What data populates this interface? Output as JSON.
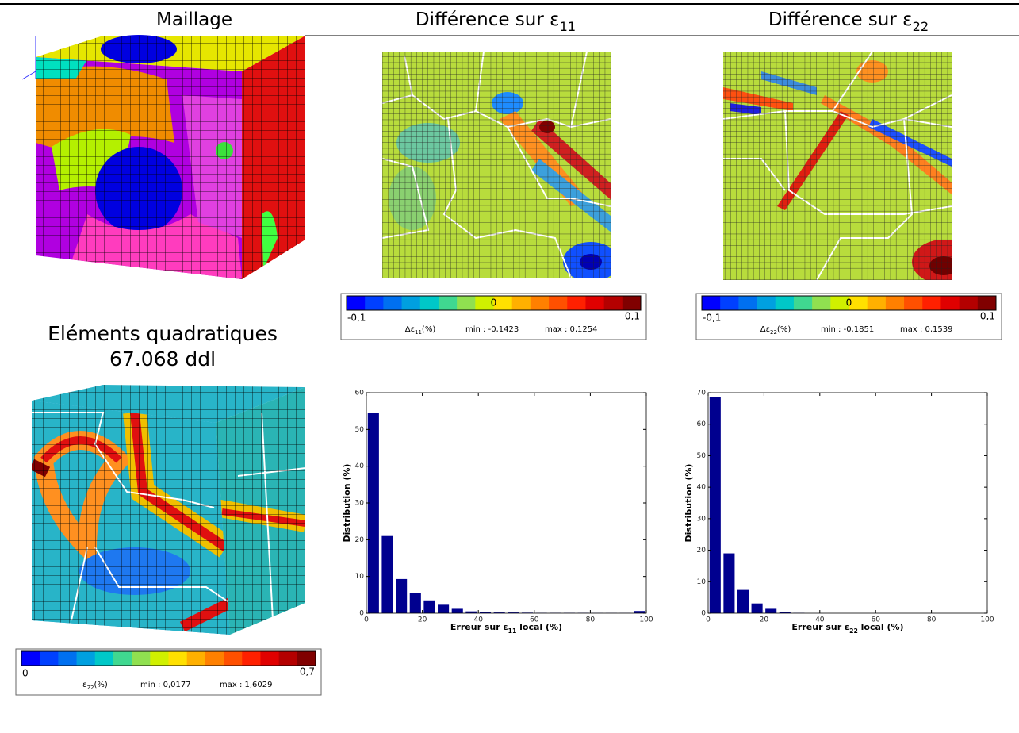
{
  "headers": [
    [
      "Maillage"
    ],
    [
      "Différence sur ε",
      "11"
    ],
    [
      "Différence sur ε",
      "22"
    ]
  ],
  "mesh_caption": [
    "Eléments quadratiques",
    "67.068 ddl"
  ],
  "colorbars": [
    {
      "min_label": "-0,1",
      "mid_label": "0",
      "max_label": "0,1",
      "quantity": [
        "Δε",
        "11",
        "(%)"
      ],
      "min": "min : -0,1423",
      "max": "max : 0,1254"
    },
    {
      "min_label": "-0,1",
      "mid_label": "0",
      "max_label": "0,1",
      "quantity": [
        "Δε",
        "22",
        "(%)"
      ],
      "min": "min : -0,1851",
      "max": "max : 0,1539"
    },
    {
      "min_label": "0",
      "max_label": "0,7",
      "quantity": [
        "ε",
        "22",
        "(%)"
      ],
      "min": "min : 0,0177",
      "max": "max : 1,6029"
    }
  ],
  "chart_data": [
    {
      "type": "histogram",
      "color": "#00008f",
      "bins": [
        0,
        5,
        10,
        15,
        20,
        25,
        30,
        35,
        40,
        45,
        50,
        55,
        60,
        65,
        70,
        75,
        80,
        85,
        90,
        95,
        100
      ],
      "values": [
        54.5,
        21,
        9.3,
        5.6,
        3.5,
        2.3,
        1.2,
        0.5,
        0.3,
        0.2,
        0.2,
        0.15,
        0.1,
        0.1,
        0.1,
        0.1,
        0.05,
        0.05,
        0.05,
        0.6
      ],
      "xlim": [
        0,
        100
      ],
      "ylim": [
        0,
        60
      ],
      "xticks": [
        0,
        20,
        40,
        60,
        80,
        100
      ],
      "yticks": [
        0,
        10,
        20,
        30,
        40,
        50,
        60
      ],
      "xlabel": [
        "Erreur sur ε",
        "11",
        " local (%)"
      ],
      "ylabel": "Distribution (%)"
    },
    {
      "type": "histogram",
      "color": "#00008f",
      "bins": [
        0,
        5,
        10,
        15,
        20,
        25,
        30,
        35,
        40,
        45,
        50,
        55,
        60,
        65,
        70,
        75,
        80,
        85,
        90,
        95,
        100
      ],
      "values": [
        68.5,
        19,
        7.4,
        3.1,
        1.4,
        0.4,
        0.1,
        0,
        0,
        0,
        0,
        0,
        0,
        0,
        0,
        0,
        0,
        0,
        0,
        0
      ],
      "xlim": [
        0,
        100
      ],
      "ylim": [
        0,
        70
      ],
      "xticks": [
        0,
        20,
        40,
        60,
        80,
        100
      ],
      "yticks": [
        0,
        10,
        20,
        30,
        40,
        50,
        60,
        70
      ],
      "xlabel": [
        "Erreur sur ε",
        "22",
        " local (%)"
      ],
      "ylabel": "Distribution (%)"
    }
  ]
}
